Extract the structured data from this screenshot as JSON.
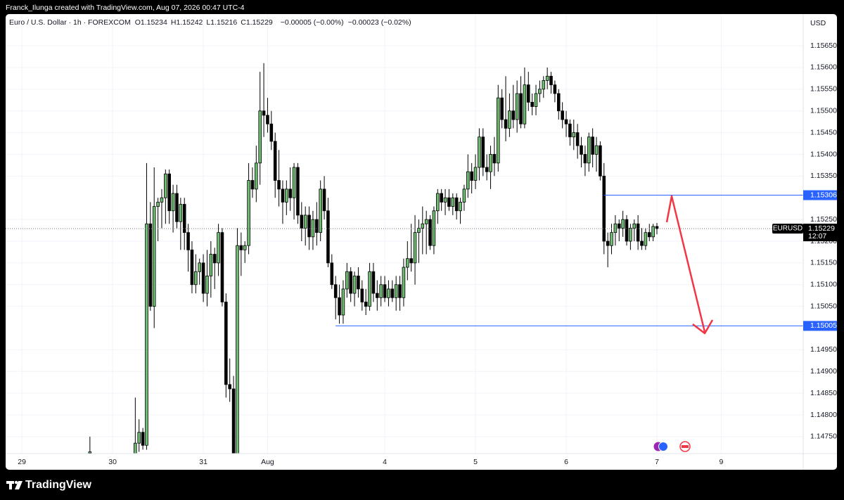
{
  "header": {
    "text": "Franck_Ilunga created with TradingView.com, Aug 07, 2026 00:47 UTC-4"
  },
  "footer": {
    "logo_text": "TradingView"
  },
  "chart_data": {
    "type": "candlestick",
    "symbol": "Euro / U.S. Dollar · 1h · FOREXCOM",
    "legend": [
      {
        "label": "O",
        "value": "1.15234"
      },
      {
        "label": "H",
        "value": "1.15242"
      },
      {
        "label": "L",
        "value": "1.15216"
      },
      {
        "label": "C",
        "value": "1.15229"
      }
    ],
    "change": "−0.00005 (−0.00%)",
    "change_total": "−0.00023 (−0.02%)",
    "currency": "USD",
    "up_color": "#6fbf73",
    "down_color": "#000000",
    "grid": true,
    "x": [
      18,
      30,
      31,
      32,
      33,
      34,
      35,
      36,
      37,
      38,
      39,
      40,
      41,
      42,
      43,
      44,
      45,
      46,
      47,
      48,
      49,
      50,
      51,
      52,
      53,
      54,
      55,
      56,
      57,
      58,
      59,
      60,
      61,
      62,
      63,
      64,
      65,
      66,
      67,
      68,
      69,
      70,
      71,
      72,
      73,
      74,
      75,
      76,
      77,
      78,
      79,
      80,
      81,
      82,
      83,
      84,
      85,
      86,
      87,
      88,
      89,
      90,
      91,
      92,
      93,
      94,
      95,
      96,
      97,
      98,
      99,
      100,
      101,
      102,
      103,
      104,
      105,
      106,
      107,
      108,
      109,
      110,
      111,
      112,
      113,
      114,
      115,
      116,
      117,
      118,
      119,
      120,
      121,
      122,
      123,
      124,
      125,
      126,
      127,
      128,
      129,
      130,
      131,
      132,
      133,
      134,
      135,
      136,
      137,
      138,
      139,
      140,
      141,
      142,
      143,
      144,
      145,
      146,
      147,
      148,
      149,
      150,
      151,
      152,
      153,
      154,
      155,
      156,
      157,
      158,
      159,
      160,
      161,
      162,
      163,
      164,
      165,
      166,
      167,
      168
    ],
    "open": [
      1.14712,
      1.14705,
      1.14735,
      1.1476,
      1.1473,
      1.1524,
      1.1505,
      1.1528,
      1.1529,
      1.153,
      1.15355,
      1.1527,
      1.1531,
      1.15245,
      1.15285,
      1.1522,
      1.1518,
      1.151,
      1.1513,
      1.1515,
      1.1508,
      1.1512,
      1.1517,
      1.1515,
      1.1522,
      1.1506,
      1.1487,
      1.1486,
      1.1465,
      1.1519,
      1.1518,
      1.1519,
      1.1534,
      1.1532,
      1.1538,
      1.155,
      1.1549,
      1.1547,
      1.1543,
      1.1534,
      1.1532,
      1.1529,
      1.1532,
      1.153,
      1.1537,
      1.1526,
      1.1523,
      1.1526,
      1.1521,
      1.1525,
      1.1522,
      1.1532,
      1.1527,
      1.1515,
      1.151,
      1.1507,
      1.1503,
      1.1509,
      1.1513,
      1.1508,
      1.1512,
      1.1509,
      1.1506,
      1.1505,
      1.1513,
      1.1508,
      1.1507,
      1.151,
      1.1507,
      1.1509,
      1.1507,
      1.151,
      1.1507,
      1.1514,
      1.1516,
      1.1515,
      1.1522,
      1.1523,
      1.1524,
      1.1525,
      1.1519,
      1.1527,
      1.1531,
      1.1529,
      1.153,
      1.1528,
      1.153,
      1.1527,
      1.1529,
      1.1532,
      1.1536,
      1.1534,
      1.1537,
      1.1544,
      1.1537,
      1.1536,
      1.154,
      1.1538,
      1.1553,
      1.1548,
      1.1546,
      1.155,
      1.1548,
      1.1554,
      1.1547,
      1.1556,
      1.1552,
      1.1551,
      1.1554,
      1.1555,
      1.1557,
      1.1558,
      1.1556,
      1.1554,
      1.155,
      1.1548,
      1.1547,
      1.1544,
      1.1545,
      1.1542,
      1.154,
      1.1538,
      1.1544,
      1.154,
      1.1542,
      1.1535,
      1.152,
      1.1519,
      1.1522,
      1.1524,
      1.1523,
      1.1525,
      1.152,
      1.1523,
      1.1524,
      1.152,
      1.1519,
      1.1522,
      1.1521,
      1.15234
    ],
    "high": [
      1.1475,
      1.1484,
      1.1479,
      1.1477,
      1.1538,
      1.1529,
      1.1537,
      1.153,
      1.1532,
      1.15365,
      1.15365,
      1.1533,
      1.1533,
      1.153,
      1.153,
      1.1524,
      1.152,
      1.1517,
      1.1516,
      1.1517,
      1.1518,
      1.152,
      1.15185,
      1.1524,
      1.1523,
      1.1508,
      1.1493,
      1.1489,
      1.1523,
      1.1522,
      1.152,
      1.1538,
      1.1537,
      1.1542,
      1.1559,
      1.1561,
      1.1553,
      1.155,
      1.1545,
      1.1541,
      1.1534,
      1.1534,
      1.1537,
      1.1538,
      1.1538,
      1.1529,
      1.1528,
      1.1528,
      1.1527,
      1.1529,
      1.1534,
      1.1535,
      1.153,
      1.1517,
      1.1512,
      1.151,
      1.1511,
      1.1515,
      1.1514,
      1.1513,
      1.1514,
      1.1511,
      1.1509,
      1.1515,
      1.1515,
      1.1511,
      1.1512,
      1.1512,
      1.1511,
      1.1511,
      1.1512,
      1.1512,
      1.1516,
      1.152,
      1.1524,
      1.1526,
      1.1525,
      1.1528,
      1.1527,
      1.1526,
      1.1528,
      1.1532,
      1.1532,
      1.1532,
      1.1532,
      1.1531,
      1.1531,
      1.153,
      1.1533,
      1.154,
      1.1538,
      1.154,
      1.1546,
      1.1546,
      1.154,
      1.1542,
      1.1544,
      1.1556,
      1.1555,
      1.1558,
      1.1554,
      1.1556,
      1.1557,
      1.1558,
      1.156,
      1.1559,
      1.1554,
      1.1556,
      1.1557,
      1.1558,
      1.156,
      1.1559,
      1.1557,
      1.1555,
      1.1552,
      1.155,
      1.1548,
      1.1548,
      1.1547,
      1.1544,
      1.1542,
      1.1545,
      1.1546,
      1.1544,
      1.1543,
      1.1538,
      1.1522,
      1.1524,
      1.1526,
      1.1525,
      1.1527,
      1.1526,
      1.1524,
      1.1525,
      1.1526,
      1.1523,
      1.1523,
      1.1524,
      1.1524,
      1.15242
    ],
    "low": [
      1.14705,
      1.147,
      1.14715,
      1.1472,
      1.1472,
      1.1504,
      1.15,
      1.152,
      1.1523,
      1.1524,
      1.1524,
      1.1522,
      1.1523,
      1.1518,
      1.1518,
      1.1513,
      1.1508,
      1.1508,
      1.151,
      1.1506,
      1.1505,
      1.1507,
      1.1509,
      1.1512,
      1.1505,
      1.1484,
      1.1483,
      1.146,
      1.1462,
      1.1512,
      1.1515,
      1.1517,
      1.153,
      1.1529,
      1.1533,
      1.1544,
      1.1545,
      1.1541,
      1.153,
      1.1528,
      1.1524,
      1.1526,
      1.1527,
      1.1525,
      1.1524,
      1.152,
      1.1519,
      1.1518,
      1.1518,
      1.1519,
      1.152,
      1.1525,
      1.1514,
      1.1509,
      1.1502,
      1.1501,
      1.1501,
      1.1507,
      1.1506,
      1.1505,
      1.1507,
      1.1504,
      1.1503,
      1.1504,
      1.1506,
      1.1504,
      1.1505,
      1.1506,
      1.1505,
      1.1506,
      1.1504,
      1.1504,
      1.1505,
      1.1511,
      1.1513,
      1.151,
      1.1515,
      1.1517,
      1.1517,
      1.1518,
      1.1517,
      1.1524,
      1.1527,
      1.1526,
      1.1527,
      1.1526,
      1.1525,
      1.1524,
      1.1527,
      1.153,
      1.1531,
      1.1532,
      1.1534,
      1.1535,
      1.1534,
      1.1532,
      1.1535,
      1.1536,
      1.1546,
      1.1543,
      1.1544,
      1.1546,
      1.1545,
      1.1546,
      1.1546,
      1.155,
      1.1549,
      1.1549,
      1.1552,
      1.1553,
      1.1555,
      1.1554,
      1.1552,
      1.1548,
      1.1546,
      1.1544,
      1.1542,
      1.1541,
      1.1539,
      1.1537,
      1.1535,
      1.1536,
      1.1537,
      1.1536,
      1.1534,
      1.1517,
      1.1514,
      1.1517,
      1.1519,
      1.152,
      1.1521,
      1.1519,
      1.1518,
      1.152,
      1.1518,
      1.1518,
      1.1518,
      1.152,
      1.152,
      1.15216
    ],
    "close": [
      1.14715,
      1.14735,
      1.1476,
      1.1473,
      1.1524,
      1.1505,
      1.1528,
      1.1529,
      1.153,
      1.15355,
      1.1527,
      1.1531,
      1.15245,
      1.15285,
      1.1522,
      1.1518,
      1.151,
      1.1513,
      1.1515,
      1.1508,
      1.1512,
      1.1517,
      1.1515,
      1.1522,
      1.1506,
      1.1487,
      1.1486,
      1.1465,
      1.1519,
      1.1518,
      1.1519,
      1.1534,
      1.1532,
      1.1538,
      1.155,
      1.1549,
      1.1547,
      1.1543,
      1.1534,
      1.1532,
      1.1529,
      1.1532,
      1.153,
      1.1537,
      1.1526,
      1.1523,
      1.1526,
      1.1521,
      1.1525,
      1.1522,
      1.1532,
      1.1527,
      1.1515,
      1.151,
      1.1507,
      1.1503,
      1.1509,
      1.1513,
      1.1508,
      1.1512,
      1.1509,
      1.1506,
      1.1505,
      1.1513,
      1.1508,
      1.1507,
      1.151,
      1.1507,
      1.1509,
      1.1507,
      1.151,
      1.1507,
      1.1514,
      1.1516,
      1.1515,
      1.1522,
      1.1523,
      1.1524,
      1.1525,
      1.1519,
      1.1527,
      1.1531,
      1.1529,
      1.153,
      1.1528,
      1.153,
      1.1527,
      1.1529,
      1.1532,
      1.1536,
      1.1534,
      1.1537,
      1.1544,
      1.1537,
      1.1536,
      1.154,
      1.1538,
      1.1553,
      1.1548,
      1.1546,
      1.155,
      1.1548,
      1.1554,
      1.1547,
      1.1556,
      1.1552,
      1.1551,
      1.1554,
      1.1555,
      1.1557,
      1.1558,
      1.1556,
      1.1554,
      1.155,
      1.1548,
      1.1547,
      1.1544,
      1.1545,
      1.1542,
      1.154,
      1.1538,
      1.1544,
      1.154,
      1.1542,
      1.1535,
      1.152,
      1.1519,
      1.1522,
      1.1524,
      1.1523,
      1.1525,
      1.152,
      1.1523,
      1.1524,
      1.152,
      1.1519,
      1.1522,
      1.1521,
      1.15234,
      1.15229
    ],
    "xlim": [
      -4.3,
      206.7
    ],
    "xticks": [
      {
        "value": 0,
        "label": "29"
      },
      {
        "value": 24,
        "label": "30"
      },
      {
        "value": 48,
        "label": "31"
      },
      {
        "value": 65,
        "label": "Aug"
      },
      {
        "value": 96,
        "label": "4"
      },
      {
        "value": 120,
        "label": "5"
      },
      {
        "value": 144,
        "label": "6"
      },
      {
        "value": 168,
        "label": "7"
      },
      {
        "value": 185,
        "label": "9"
      }
    ],
    "ylim": [
      1.14711,
      1.15723
    ],
    "yticks": [
      {
        "value": 1.1565,
        "label": "1.15650"
      },
      {
        "value": 1.156,
        "label": "1.15600"
      },
      {
        "value": 1.1555,
        "label": "1.15550"
      },
      {
        "value": 1.155,
        "label": "1.15500"
      },
      {
        "value": 1.1545,
        "label": "1.15450"
      },
      {
        "value": 1.154,
        "label": "1.15400"
      },
      {
        "value": 1.1535,
        "label": "1.15350"
      },
      {
        "value": 1.1525,
        "label": "1.15250"
      },
      {
        "value": 1.152,
        "label": "1.15200"
      },
      {
        "value": 1.1515,
        "label": "1.15150"
      },
      {
        "value": 1.151,
        "label": "1.15100"
      },
      {
        "value": 1.1505,
        "label": "1.15050"
      },
      {
        "value": 1.1495,
        "label": "1.14950"
      },
      {
        "value": 1.149,
        "label": "1.14900"
      },
      {
        "value": 1.1485,
        "label": "1.14850"
      },
      {
        "value": 1.148,
        "label": "1.14800"
      },
      {
        "value": 1.1475,
        "label": "1.14750"
      }
    ],
    "levels": [
      {
        "value": 1.15306,
        "start": 154,
        "color": "#2962ff"
      },
      {
        "value": 1.15005,
        "start": 83,
        "color": "#2962ff"
      }
    ],
    "last_price": {
      "value": 1.15229,
      "symbol": "EURUSD",
      "countdown": "12:07"
    }
  }
}
